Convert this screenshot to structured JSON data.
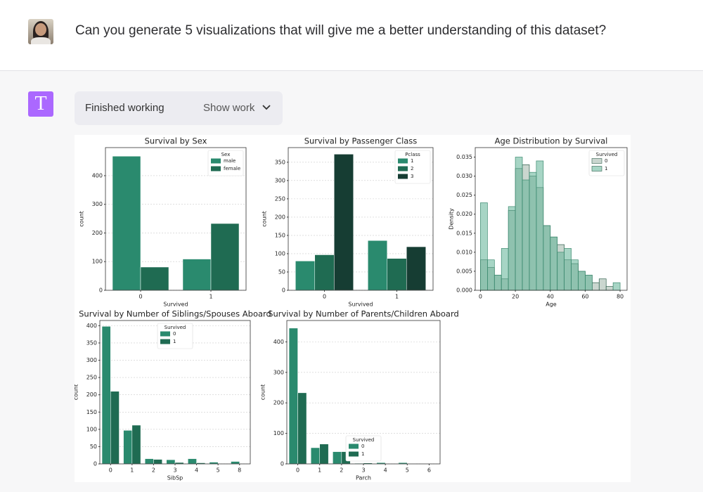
{
  "user_message": {
    "text": "Can you generate 5 visualizations that will give me a better understanding of this dataset?"
  },
  "assistant": {
    "icon_letter": "T",
    "status": "Finished working",
    "toggle": "Show work"
  },
  "chart_data": [
    {
      "type": "bar",
      "title": "Survival by Sex",
      "x_label": "Survived",
      "y_label": "count",
      "categories": [
        "0",
        "1"
      ],
      "legend_title": "Sex",
      "legend": "upper right",
      "grid": true,
      "series": [
        {
          "name": "male",
          "color": "#2a8a6e",
          "values": [
            468,
            109
          ]
        },
        {
          "name": "female",
          "color": "#1f6b52",
          "values": [
            81,
            233
          ]
        }
      ],
      "ylim": [
        0,
        498
      ],
      "yticks": [
        0,
        100,
        200,
        300,
        400
      ]
    },
    {
      "type": "bar",
      "title": "Survival by Passenger Class",
      "x_label": "Survived",
      "y_label": "count",
      "categories": [
        "0",
        "1"
      ],
      "legend_title": "Pclass",
      "legend": "upper right",
      "grid": true,
      "series": [
        {
          "name": "1",
          "color": "#2a8a6e",
          "values": [
            80,
            136
          ]
        },
        {
          "name": "2",
          "color": "#1f6b52",
          "values": [
            97,
            87
          ]
        },
        {
          "name": "3",
          "color": "#163d33",
          "values": [
            372,
            119
          ]
        }
      ],
      "ylim": [
        0,
        390
      ],
      "yticks": [
        0,
        50,
        100,
        150,
        200,
        250,
        300,
        350
      ]
    },
    {
      "type": "histogram",
      "title": "Age Distribution by Survival",
      "x_label": "Age",
      "y_label": "Density",
      "legend_title": "Survived",
      "legend": "upper right",
      "grid": false,
      "bins": [
        0,
        4,
        8,
        12,
        16,
        20,
        24,
        28,
        32,
        36,
        40,
        44,
        48,
        52,
        56,
        60,
        64,
        68,
        72,
        76,
        80
      ],
      "series": [
        {
          "name": "0",
          "color": "#9fb5a8",
          "values": [
            0.008,
            0.006,
            0.004,
            0.003,
            0.021,
            0.032,
            0.033,
            0.03,
            0.027,
            0.017,
            0.014,
            0.012,
            0.008,
            0.007,
            0.005,
            0.004,
            0.002,
            0.003,
            0.001,
            0
          ]
        },
        {
          "name": "1",
          "color": "#5fb396",
          "values": [
            0.023,
            0.008,
            0.004,
            0.011,
            0.022,
            0.035,
            0.029,
            0.031,
            0.034,
            0.017,
            0.014,
            0.01,
            0.011,
            0.008,
            0.005,
            0.004,
            0,
            0,
            0,
            0.002
          ]
        }
      ],
      "xlim": [
        -3,
        84
      ],
      "xticks": [
        0,
        20,
        40,
        60,
        80
      ],
      "ylim": [
        0,
        0.0375
      ],
      "yticks": [
        {
          "value": 0,
          "label": "0.000"
        },
        {
          "value": 0.005,
          "label": "0.005"
        },
        {
          "value": 0.01,
          "label": "0.010"
        },
        {
          "value": 0.015,
          "label": "0.015"
        },
        {
          "value": 0.02,
          "label": "0.020"
        },
        {
          "value": 0.025,
          "label": "0.025"
        },
        {
          "value": 0.03,
          "label": "0.030"
        },
        {
          "value": 0.035,
          "label": "0.035"
        }
      ]
    },
    {
      "type": "bar",
      "title": "Survival by Number of Siblings/Spouses Aboard",
      "x_label": "SibSp",
      "y_label": "count",
      "categories": [
        "0",
        "1",
        "2",
        "3",
        "4",
        "5",
        "8"
      ],
      "legend_title": "Survived",
      "legend": "upper center",
      "grid": true,
      "series": [
        {
          "name": "0",
          "color": "#2a8a6e",
          "values": [
            398,
            97,
            15,
            12,
            15,
            5,
            7
          ]
        },
        {
          "name": "1",
          "color": "#1f6b52",
          "values": [
            210,
            112,
            13,
            4,
            3,
            0,
            0
          ]
        }
      ],
      "ylim": [
        0,
        415
      ],
      "yticks": [
        0,
        50,
        100,
        150,
        200,
        250,
        300,
        350,
        400
      ]
    },
    {
      "type": "bar",
      "title": "Survival by Number of Parents/Children Aboard",
      "x_label": "Parch",
      "y_label": "count",
      "categories": [
        "0",
        "1",
        "2",
        "3",
        "4",
        "5",
        "6"
      ],
      "legend_title": "Survived",
      "legend": "lower center",
      "grid": true,
      "series": [
        {
          "name": "0",
          "color": "#2a8a6e",
          "values": [
            445,
            53,
            40,
            2,
            4,
            4,
            1
          ]
        },
        {
          "name": "1",
          "color": "#1f6b52",
          "values": [
            233,
            65,
            40,
            3,
            0,
            1,
            0
          ]
        }
      ],
      "ylim": [
        0,
        470
      ],
      "yticks": [
        0,
        100,
        200,
        300,
        400
      ]
    }
  ]
}
